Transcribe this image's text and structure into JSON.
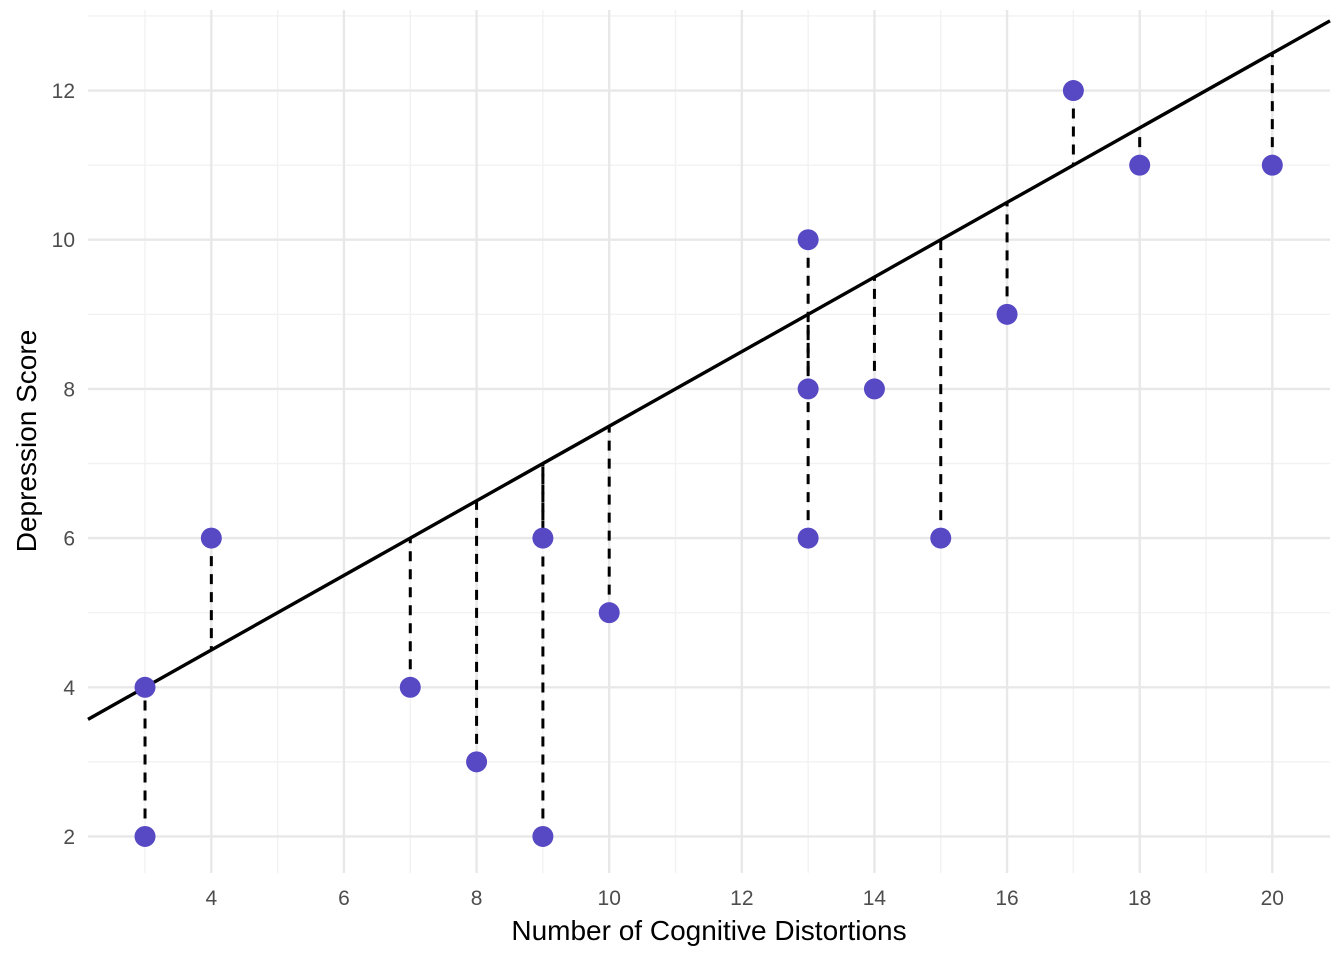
{
  "chart_data": {
    "type": "scatter",
    "title": "",
    "xlabel": "Number of Cognitive Distortions",
    "ylabel": "Depression Score",
    "x_ticks": [
      4,
      6,
      8,
      10,
      12,
      14,
      16,
      18,
      20
    ],
    "y_ticks": [
      2,
      4,
      6,
      8,
      10,
      12
    ],
    "x_minor_gridlines": [
      3,
      5,
      7,
      9,
      11,
      13,
      15,
      17,
      19
    ],
    "y_minor_gridlines": [
      3,
      5,
      7,
      9,
      11,
      13
    ],
    "xlim": [
      2.14,
      20.87
    ],
    "ylim": [
      1.51,
      13.08
    ],
    "grid": true,
    "legend": false,
    "points": [
      {
        "x": 3,
        "y": 2
      },
      {
        "x": 3,
        "y": 4
      },
      {
        "x": 4,
        "y": 6
      },
      {
        "x": 7,
        "y": 4
      },
      {
        "x": 8,
        "y": 3
      },
      {
        "x": 9,
        "y": 2
      },
      {
        "x": 9,
        "y": 6
      },
      {
        "x": 10,
        "y": 5
      },
      {
        "x": 13,
        "y": 6
      },
      {
        "x": 13,
        "y": 8
      },
      {
        "x": 13,
        "y": 10
      },
      {
        "x": 14,
        "y": 8
      },
      {
        "x": 15,
        "y": 6
      },
      {
        "x": 16,
        "y": 9
      },
      {
        "x": 17,
        "y": 12
      },
      {
        "x": 18,
        "y": 11
      },
      {
        "x": 20,
        "y": 11
      }
    ],
    "fit_line": {
      "slope": 0.5,
      "intercept": 2.5,
      "style": "solid"
    },
    "residuals": {
      "style": "dashed",
      "description": "vertical dashed segment from each point to the fitted line"
    },
    "colors": {
      "point": "#5748C4",
      "fit_line": "#000000",
      "residual": "#000000",
      "grid_major": "#E8E8E8",
      "grid_minor": "#F2F2F2",
      "axis_text": "#4D4D4D",
      "axis_title": "#000000",
      "background": "#FFFFFF"
    }
  }
}
